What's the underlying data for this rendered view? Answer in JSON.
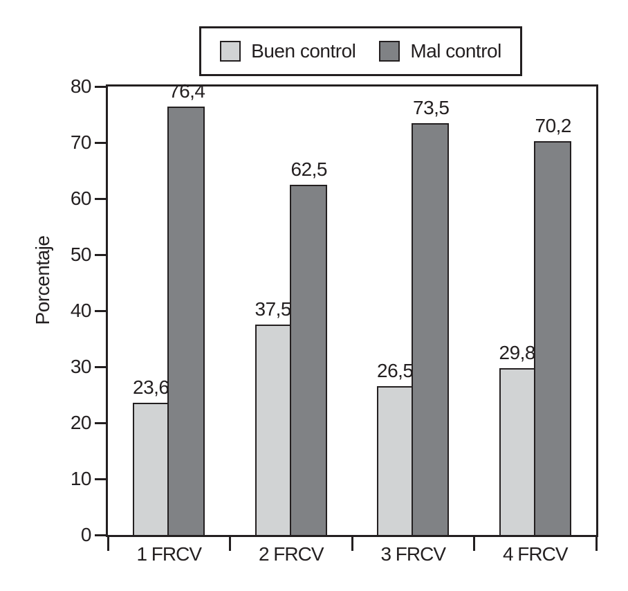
{
  "chart_data": {
    "type": "bar",
    "title": "",
    "categories": [
      "1 FRCV",
      "2 FRCV",
      "3 FRCV",
      "4 FRCV"
    ],
    "series": [
      {
        "name": "Buen control",
        "color": "#d1d3d4",
        "values": [
          23.6,
          37.5,
          26.5,
          29.8
        ],
        "labels": [
          "23,6",
          "37,5",
          "26,5",
          "29,8"
        ]
      },
      {
        "name": "Mal control",
        "color": "#808285",
        "values": [
          76.4,
          62.5,
          73.5,
          70.2
        ],
        "labels": [
          "76,4",
          "62,5",
          "73,5",
          "70,2"
        ]
      }
    ],
    "xlabel": "",
    "ylabel": "Porcentaje",
    "ylim": [
      0,
      80
    ],
    "yticks": [
      0,
      10,
      20,
      30,
      40,
      50,
      60,
      70,
      80
    ],
    "grid": false,
    "legend_position": "top",
    "decimal_separator": ",",
    "outline_color": "#231f20",
    "background_color": "#ffffff"
  }
}
